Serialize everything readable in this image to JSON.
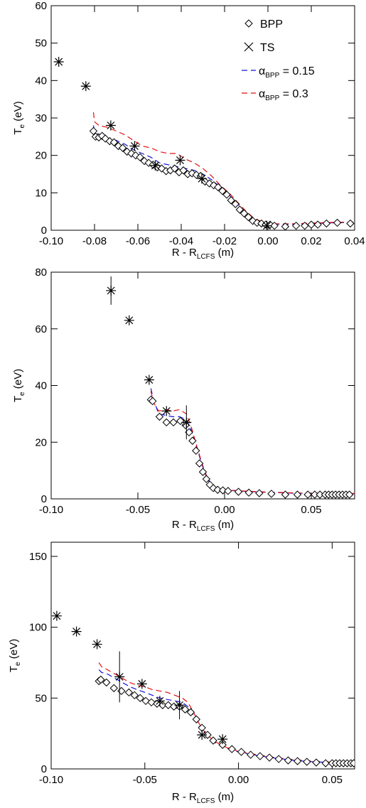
{
  "chart_data": [
    {
      "type": "scatter",
      "xlabel": "R - R",
      "xlabel_sub": "LCFS",
      "xlabel_unit": " (m)",
      "ylabel": "T",
      "ylabel_sub": "e",
      "ylabel_unit": " (eV)",
      "xlim": [
        -0.1,
        0.04
      ],
      "ylim": [
        0,
        60
      ],
      "xticks": [
        -0.1,
        -0.08,
        -0.06,
        -0.04,
        -0.02,
        0.0,
        0.02,
        0.04
      ],
      "xtick_labels": [
        "-0.10",
        "-0.08",
        "-0.06",
        "-0.04",
        "-0.02",
        "0.00",
        "0.02",
        "0.04"
      ],
      "yticks": [
        0,
        10,
        20,
        30,
        40,
        50,
        60
      ],
      "ytick_labels": [
        "0",
        "10",
        "20",
        "30",
        "40",
        "50",
        "60"
      ],
      "legend": {
        "placement": "top-right",
        "bpp_label": "BPP",
        "ts_label": "TS",
        "a015_prefix": "α",
        "a015_sub": "BPP",
        "a015_suffix": " = 0.15",
        "a03_prefix": "α",
        "a03_sub": "BPP",
        "a03_suffix": " = 0.3"
      },
      "series": [
        {
          "key": "bpp",
          "marker": "diamond",
          "x": [
            -0.0805,
            -0.0795,
            -0.078,
            -0.0765,
            -0.075,
            -0.073,
            -0.071,
            -0.069,
            -0.067,
            -0.065,
            -0.063,
            -0.061,
            -0.059,
            -0.057,
            -0.055,
            -0.053,
            -0.051,
            -0.049,
            -0.047,
            -0.045,
            -0.043,
            -0.041,
            -0.039,
            -0.037,
            -0.035,
            -0.033,
            -0.031,
            -0.029,
            -0.027,
            -0.025,
            -0.023,
            -0.021,
            -0.019,
            -0.017,
            -0.015,
            -0.013,
            -0.011,
            -0.009,
            -0.007,
            -0.005,
            -0.003,
            -0.001,
            0.001,
            0.003,
            0.008,
            0.013,
            0.017,
            0.02,
            0.023,
            0.027,
            0.032,
            0.038
          ],
          "y": [
            26.5,
            25.0,
            24.8,
            25.2,
            24.5,
            23.8,
            23.5,
            22.5,
            22.0,
            21.0,
            20.5,
            20.0,
            19.5,
            18.5,
            18.0,
            17.5,
            16.8,
            16.5,
            15.8,
            16.0,
            16.5,
            15.5,
            16.0,
            15.0,
            15.2,
            14.8,
            14.5,
            13.0,
            12.5,
            12.0,
            11.5,
            10.5,
            9.5,
            8.0,
            7.0,
            5.5,
            4.5,
            3.5,
            2.5,
            2.0,
            1.8,
            1.5,
            1.5,
            1.2,
            1.0,
            1.2,
            1.2,
            1.5,
            1.5,
            1.8,
            2.0,
            1.8
          ]
        },
        {
          "key": "ts",
          "marker": "star",
          "x": [
            -0.0965,
            -0.084,
            -0.0725,
            -0.0615,
            -0.052,
            -0.0405,
            -0.0305,
            -0.0005
          ],
          "y": [
            45,
            38.5,
            28,
            22.5,
            17.3,
            18.7,
            13.8,
            1.2
          ],
          "yerr": [
            0,
            0,
            0,
            0,
            0,
            0,
            0,
            1
          ]
        },
        {
          "key": "a015",
          "style": "dashed",
          "color": "#1010e0",
          "x": [
            -0.0805,
            -0.08,
            -0.078,
            -0.074,
            -0.07,
            -0.066,
            -0.062,
            -0.058,
            -0.054,
            -0.05,
            -0.046,
            -0.042,
            -0.038,
            -0.034,
            -0.03,
            -0.026,
            -0.022,
            -0.018,
            -0.014,
            -0.01,
            -0.006,
            -0.002,
            0.002,
            0.01,
            0.02,
            0.03,
            0.04
          ],
          "y": [
            28,
            26.5,
            25.5,
            24.5,
            24,
            23,
            21.5,
            20.5,
            19.5,
            18,
            17.5,
            17,
            16.5,
            16,
            15,
            13.5,
            11.5,
            9.5,
            7,
            4.5,
            2.8,
            2,
            1.6,
            1.6,
            1.8,
            2,
            2.1
          ]
        },
        {
          "key": "a03",
          "style": "dashed",
          "color": "#e01010",
          "x": [
            -0.0805,
            -0.08,
            -0.078,
            -0.074,
            -0.07,
            -0.066,
            -0.062,
            -0.058,
            -0.054,
            -0.05,
            -0.046,
            -0.042,
            -0.038,
            -0.034,
            -0.03,
            -0.026,
            -0.022,
            -0.018,
            -0.014,
            -0.01,
            -0.006,
            -0.002,
            0.002,
            0.01,
            0.02,
            0.03,
            0.04
          ],
          "y": [
            31.5,
            29,
            28,
            27.5,
            26.5,
            25.5,
            24,
            22.5,
            22,
            21,
            20.5,
            20.5,
            19,
            18,
            16.5,
            14.5,
            12,
            10,
            7.5,
            5,
            3,
            2.2,
            1.7,
            1.7,
            1.9,
            2.1,
            2.2
          ]
        }
      ]
    },
    {
      "type": "scatter",
      "xlabel": "R - R",
      "xlabel_sub": "LCFS",
      "xlabel_unit": " (m)",
      "ylabel": "T",
      "ylabel_sub": "e",
      "ylabel_unit": " (eV)",
      "xlim": [
        -0.1,
        0.075
      ],
      "ylim": [
        0,
        80
      ],
      "xticks": [
        -0.1,
        -0.05,
        0.0,
        0.05
      ],
      "xtick_labels": [
        "-0.10",
        "-0.05",
        "0.00",
        "0.05"
      ],
      "yticks": [
        0,
        20,
        40,
        60,
        80
      ],
      "ytick_labels": [
        "0",
        "20",
        "40",
        "60",
        "80"
      ],
      "series": [
        {
          "key": "bpp",
          "marker": "diamond",
          "x": [
            -0.0425,
            -0.0415,
            -0.0375,
            -0.0335,
            -0.0295,
            -0.0255,
            -0.0225,
            -0.0205,
            -0.0185,
            -0.0165,
            -0.0145,
            -0.0125,
            -0.0105,
            -0.0085,
            -0.0065,
            -0.004,
            -0.001,
            0.002,
            0.008,
            0.014,
            0.02,
            0.027,
            0.035,
            0.042,
            0.048,
            0.052,
            0.055,
            0.058,
            0.06,
            0.062,
            0.064,
            0.066,
            0.068,
            0.07,
            0.072
          ],
          "y": [
            35,
            34.5,
            29,
            27,
            27,
            27.5,
            26,
            23.5,
            20.5,
            17,
            12.5,
            9.5,
            7,
            5,
            3.8,
            3.2,
            3.0,
            2.8,
            2.5,
            2.2,
            2.0,
            1.8,
            1.5,
            1.5,
            1.5,
            1.5,
            1.5,
            1.5,
            1.5,
            1.5,
            1.5,
            1.5,
            1.5,
            1.5,
            1.5
          ]
        },
        {
          "key": "ts",
          "marker": "star",
          "x": [
            -0.0655,
            -0.055,
            -0.0435,
            -0.0335,
            -0.022
          ],
          "y": [
            73.5,
            63,
            42,
            31,
            27
          ],
          "yerr": [
            5,
            0,
            0,
            0,
            6
          ]
        },
        {
          "key": "a015",
          "style": "dashed",
          "color": "#1010e0",
          "x": [
            -0.0425,
            -0.041,
            -0.038,
            -0.034,
            -0.03,
            -0.026,
            -0.022,
            -0.019,
            -0.016,
            -0.013,
            -0.01,
            -0.007,
            -0.004,
            -0.001,
            0.002,
            0.01,
            0.02,
            0.03,
            0.04,
            0.05,
            0.06,
            0.075
          ],
          "y": [
            39,
            35,
            30,
            29.5,
            29,
            29,
            28,
            24,
            18,
            12,
            7,
            4.5,
            3.5,
            3.2,
            3.0,
            2.7,
            2.4,
            2.2,
            2.0,
            1.9,
            1.8,
            1.8
          ]
        },
        {
          "key": "a03",
          "style": "dashed",
          "color": "#e01010",
          "x": [
            -0.0425,
            -0.041,
            -0.038,
            -0.034,
            -0.03,
            -0.026,
            -0.022,
            -0.019,
            -0.016,
            -0.013,
            -0.01,
            -0.007,
            -0.004,
            -0.001,
            0.002,
            0.01,
            0.02,
            0.03,
            0.04,
            0.05,
            0.06,
            0.075
          ],
          "y": [
            38,
            34,
            31,
            31.5,
            31,
            31.5,
            30,
            25,
            18.5,
            12.5,
            7.5,
            4.8,
            3.6,
            3.3,
            3.1,
            2.8,
            2.5,
            2.3,
            2.1,
            2.0,
            1.9,
            1.9
          ]
        }
      ]
    },
    {
      "type": "scatter",
      "xlabel": "R - R",
      "xlabel_sub": "LCFS",
      "xlabel_unit": " (m)",
      "ylabel": "T",
      "ylabel_sub": "e",
      "ylabel_unit": " (eV)",
      "xlim": [
        -0.1,
        0.062
      ],
      "ylim": [
        0,
        160
      ],
      "xticks": [
        -0.1,
        -0.05,
        0.0,
        0.05
      ],
      "xtick_labels": [
        "-0.10",
        "-0.05",
        "0.00",
        "0.05"
      ],
      "yticks": [
        0,
        50,
        100,
        150
      ],
      "ytick_labels": [
        "0",
        "50",
        "100",
        "150"
      ],
      "series": [
        {
          "key": "bpp",
          "marker": "diamond",
          "x": [
            -0.0745,
            -0.0735,
            -0.0705,
            -0.0665,
            -0.0625,
            -0.0585,
            -0.0555,
            -0.0525,
            -0.0495,
            -0.0465,
            -0.0435,
            -0.0405,
            -0.0375,
            -0.0345,
            -0.0315,
            -0.0285,
            -0.0255,
            -0.0225,
            -0.0195,
            -0.0165,
            -0.0135,
            -0.0085,
            -0.0035,
            0.0015,
            0.0065,
            0.0115,
            0.0165,
            0.0215,
            0.0265,
            0.0315,
            0.0365,
            0.0415,
            0.0465,
            0.05,
            0.052,
            0.054,
            0.056,
            0.058,
            0.06,
            0.0615
          ],
          "y": [
            62,
            63,
            61,
            57,
            55,
            54,
            52,
            50,
            48,
            47,
            46,
            45,
            45,
            44,
            44,
            42,
            40,
            35,
            29,
            24,
            20,
            17,
            14,
            12,
            10,
            9,
            8,
            7,
            6,
            5.5,
            5,
            4.5,
            4,
            4,
            4,
            4,
            4,
            4,
            4,
            4
          ]
        },
        {
          "key": "ts",
          "marker": "star",
          "x": [
            -0.097,
            -0.0865,
            -0.0755,
            -0.0635,
            -0.0515,
            -0.042,
            -0.0315,
            -0.0195,
            -0.0085
          ],
          "y": [
            108,
            97,
            88,
            65,
            60,
            48,
            45,
            24,
            21
          ],
          "yerr": [
            0,
            0,
            0,
            18,
            0,
            0,
            10,
            0,
            0
          ]
        },
        {
          "key": "a015",
          "style": "dashed",
          "color": "#1010e0",
          "x": [
            -0.0745,
            -0.073,
            -0.07,
            -0.066,
            -0.062,
            -0.058,
            -0.054,
            -0.05,
            -0.046,
            -0.042,
            -0.038,
            -0.034,
            -0.03,
            -0.027,
            -0.024,
            -0.021,
            -0.018,
            -0.015,
            -0.012,
            -0.009,
            -0.005,
            0.0,
            0.01,
            0.02,
            0.03,
            0.04,
            0.05,
            0.062
          ],
          "y": [
            70,
            68,
            67,
            64,
            61,
            58,
            56,
            54,
            52,
            50,
            49,
            48,
            47,
            44,
            38,
            30,
            25,
            21,
            18,
            16,
            14,
            12,
            9.5,
            7.5,
            6,
            5,
            4.5,
            4
          ]
        },
        {
          "key": "a03",
          "style": "dashed",
          "color": "#e01010",
          "x": [
            -0.0745,
            -0.073,
            -0.07,
            -0.066,
            -0.062,
            -0.058,
            -0.054,
            -0.05,
            -0.046,
            -0.042,
            -0.038,
            -0.034,
            -0.03,
            -0.027,
            -0.024,
            -0.021,
            -0.018,
            -0.015,
            -0.012,
            -0.009,
            -0.005,
            0.0,
            0.01,
            0.02,
            0.03,
            0.04,
            0.05,
            0.062
          ],
          "y": [
            75,
            72,
            70,
            67,
            64,
            61,
            59,
            58,
            56,
            55,
            54,
            52,
            50,
            47,
            40,
            32,
            26,
            22,
            19,
            16.5,
            14.5,
            12.5,
            10,
            8,
            6.5,
            5.5,
            4.8,
            4.2
          ]
        }
      ]
    }
  ]
}
